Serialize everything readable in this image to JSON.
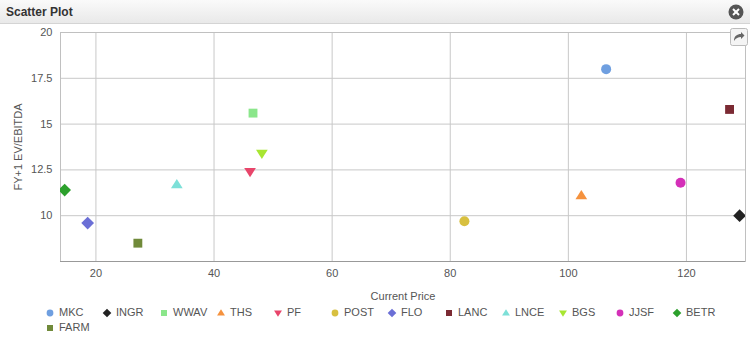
{
  "chart_data": {
    "type": "scatter",
    "title": "Scatter Plot",
    "x_label": "Current Price",
    "y_label": "FY+1 EV/EBITDA",
    "xlim": [
      14,
      130
    ],
    "xticks": [
      20,
      40,
      60,
      80,
      100,
      120
    ],
    "ylim": [
      7.5,
      20
    ],
    "yticks": [
      10,
      12.5,
      15,
      17.5,
      20
    ],
    "grid": true,
    "legend": "bottom",
    "series": [
      {
        "name": "MKC",
        "color": "#6f9fe0",
        "marker": "circle",
        "values": [
          [
            106.4,
            18.0
          ]
        ]
      },
      {
        "name": "INGR",
        "color": "#222222",
        "marker": "diamond",
        "values": [
          [
            129.0,
            10.0
          ]
        ]
      },
      {
        "name": "WWAV",
        "color": "#8be68b",
        "marker": "square",
        "values": [
          [
            46.6,
            15.6
          ]
        ]
      },
      {
        "name": "THS",
        "color": "#f5923e",
        "marker": "triangle",
        "values": [
          [
            102.2,
            11.1
          ]
        ]
      },
      {
        "name": "PF",
        "color": "#e8456a",
        "marker": "triangle-down",
        "values": [
          [
            46.1,
            12.4
          ]
        ]
      },
      {
        "name": "POST",
        "color": "#d8c040",
        "marker": "circle",
        "values": [
          [
            82.4,
            9.7
          ]
        ]
      },
      {
        "name": "FLO",
        "color": "#6b6fd6",
        "marker": "diamond",
        "values": [
          [
            18.6,
            9.6
          ]
        ]
      },
      {
        "name": "LANC",
        "color": "#7b2a33",
        "marker": "square",
        "values": [
          [
            127.3,
            15.8
          ]
        ]
      },
      {
        "name": "LNCE",
        "color": "#7de0d8",
        "marker": "triangle",
        "values": [
          [
            33.7,
            11.7
          ]
        ]
      },
      {
        "name": "BGS",
        "color": "#a8e632",
        "marker": "triangle-down",
        "values": [
          [
            48.1,
            13.4
          ]
        ]
      },
      {
        "name": "JJSF",
        "color": "#d430b8",
        "marker": "circle",
        "values": [
          [
            119.0,
            11.8
          ]
        ]
      },
      {
        "name": "BETR",
        "color": "#2ca02c",
        "marker": "diamond",
        "values": [
          [
            14.7,
            11.4
          ]
        ]
      },
      {
        "name": "FARM",
        "color": "#708a3a",
        "marker": "square",
        "values": [
          [
            27.1,
            8.5
          ]
        ]
      }
    ]
  }
}
